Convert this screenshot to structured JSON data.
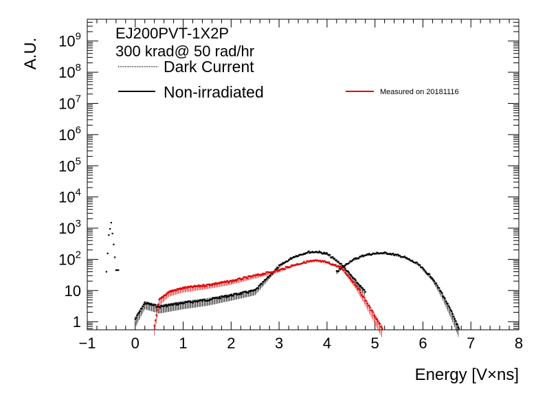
{
  "chart_data": {
    "type": "scatter",
    "title": "",
    "xlabel": "Energy [V×ns]",
    "ylabel": "A.U.",
    "xlim": [
      -1,
      8
    ],
    "ylim": [
      0.55,
      5000000000
    ],
    "yscale": "log",
    "grid": false,
    "legend_position": "top-left",
    "x_tick_labels": [
      "−1",
      "0",
      "1",
      "2",
      "3",
      "4",
      "5",
      "6",
      "7",
      "8"
    ],
    "x_ticks": [
      -1,
      0,
      1,
      2,
      3,
      4,
      5,
      6,
      7,
      8
    ],
    "y_ticks": [
      {
        "value": 1,
        "base": "1",
        "exp": ""
      },
      {
        "value": 10,
        "base": "10",
        "exp": ""
      },
      {
        "value": 100,
        "base": "10",
        "exp": "2"
      },
      {
        "value": 1000,
        "base": "10",
        "exp": "3"
      },
      {
        "value": 10000,
        "base": "10",
        "exp": "4"
      },
      {
        "value": 100000,
        "base": "10",
        "exp": "5"
      },
      {
        "value": 1000000,
        "base": "10",
        "exp": "6"
      },
      {
        "value": 10000000,
        "base": "10",
        "exp": "7"
      },
      {
        "value": 100000000,
        "base": "10",
        "exp": "8"
      },
      {
        "value": 1000000000,
        "base": "10",
        "exp": "9"
      }
    ],
    "annotations": [
      "EJ200PVT-1X2P",
      "300 krad@ 50 rad/hr"
    ],
    "legend": [
      {
        "label": "Dark Current",
        "style": "dotted",
        "color": "#000000"
      },
      {
        "label": "Non-irradiated",
        "style": "solid",
        "color": "#000000"
      },
      {
        "label": "Measured on 20181116",
        "style": "solid",
        "color": "#dd0000"
      }
    ],
    "series": [
      {
        "name": "Dark Current",
        "color": "#000000",
        "x": [
          -0.6,
          -0.55,
          -0.5,
          -0.45,
          -0.4,
          -0.35
        ],
        "y": [
          40,
          600,
          1500,
          300,
          45,
          45
        ]
      },
      {
        "name": "Non-irradiated",
        "color": "#000000",
        "x": [
          0.0,
          0.2,
          0.5,
          1.0,
          1.5,
          2.0,
          2.5,
          3.0,
          3.3,
          3.6,
          3.8,
          4.0,
          4.3,
          4.6,
          4.8
        ],
        "y": [
          1.2,
          4,
          3,
          4,
          5,
          7,
          10,
          60,
          120,
          170,
          175,
          150,
          70,
          20,
          9
        ]
      },
      {
        "name": "Non-irradiated",
        "color": "#000000",
        "x": [
          4.2,
          4.5,
          4.8,
          5.1,
          5.3,
          5.6,
          5.9,
          6.2,
          6.4,
          6.6,
          6.75
        ],
        "y": [
          40,
          90,
          140,
          160,
          155,
          120,
          70,
          25,
          8,
          2,
          0.6
        ]
      },
      {
        "name": "Measured on 20181116",
        "color": "#dd0000",
        "x": [
          0.4,
          0.5,
          0.7,
          1.0,
          1.5,
          2.0,
          2.5,
          3.0,
          3.3,
          3.6,
          3.8,
          4.0,
          4.3,
          4.6,
          4.8,
          5.0,
          5.15
        ],
        "y": [
          0.7,
          5,
          9,
          12,
          15,
          20,
          30,
          45,
          65,
          85,
          90,
          80,
          55,
          15,
          5,
          1.5,
          0.6
        ]
      }
    ]
  }
}
